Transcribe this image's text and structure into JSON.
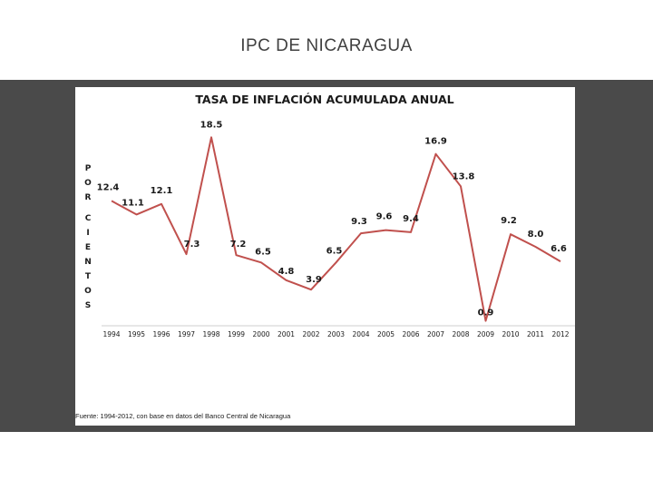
{
  "slide": {
    "title": "IPC  DE NICARAGUA"
  },
  "colors": {
    "line": "#c0504d",
    "band": "#4a4a4a",
    "panel": "#ffffff"
  },
  "chart_data": {
    "type": "line",
    "title": "TASA DE INFLACIÓN ACUMULADA ANUAL",
    "ylabel": "POR CIENTOS",
    "xlabel": "",
    "categories": [
      "1994",
      "1995",
      "1996",
      "1997",
      "1998",
      "1999",
      "2000",
      "2001",
      "2002",
      "2003",
      "2004",
      "2005",
      "2006",
      "2007",
      "2008",
      "2009",
      "2010",
      "2011",
      "2012"
    ],
    "series": [
      {
        "values": [
          12.4,
          11.1,
          12.1,
          7.3,
          18.5,
          7.2,
          6.5,
          4.8,
          3.9,
          6.5,
          9.3,
          9.6,
          9.4,
          16.9,
          13.8,
          0.9,
          9.2,
          8.0,
          6.6
        ]
      }
    ],
    "value_labels": [
      "12.4",
      "11.1",
      "12.1",
      "7.3",
      "18.5",
      "7.2",
      "6.5",
      "4.8",
      "3.9",
      "6.5",
      "9.3",
      "9.6",
      "9.4",
      "16.9",
      "13.8",
      "0.9",
      "9.2",
      "8.0",
      "6.6"
    ],
    "grid": false,
    "legend": "none",
    "source": "Fuente: 1994-2012, con base en datos del Banco Central de Nicaragua"
  }
}
